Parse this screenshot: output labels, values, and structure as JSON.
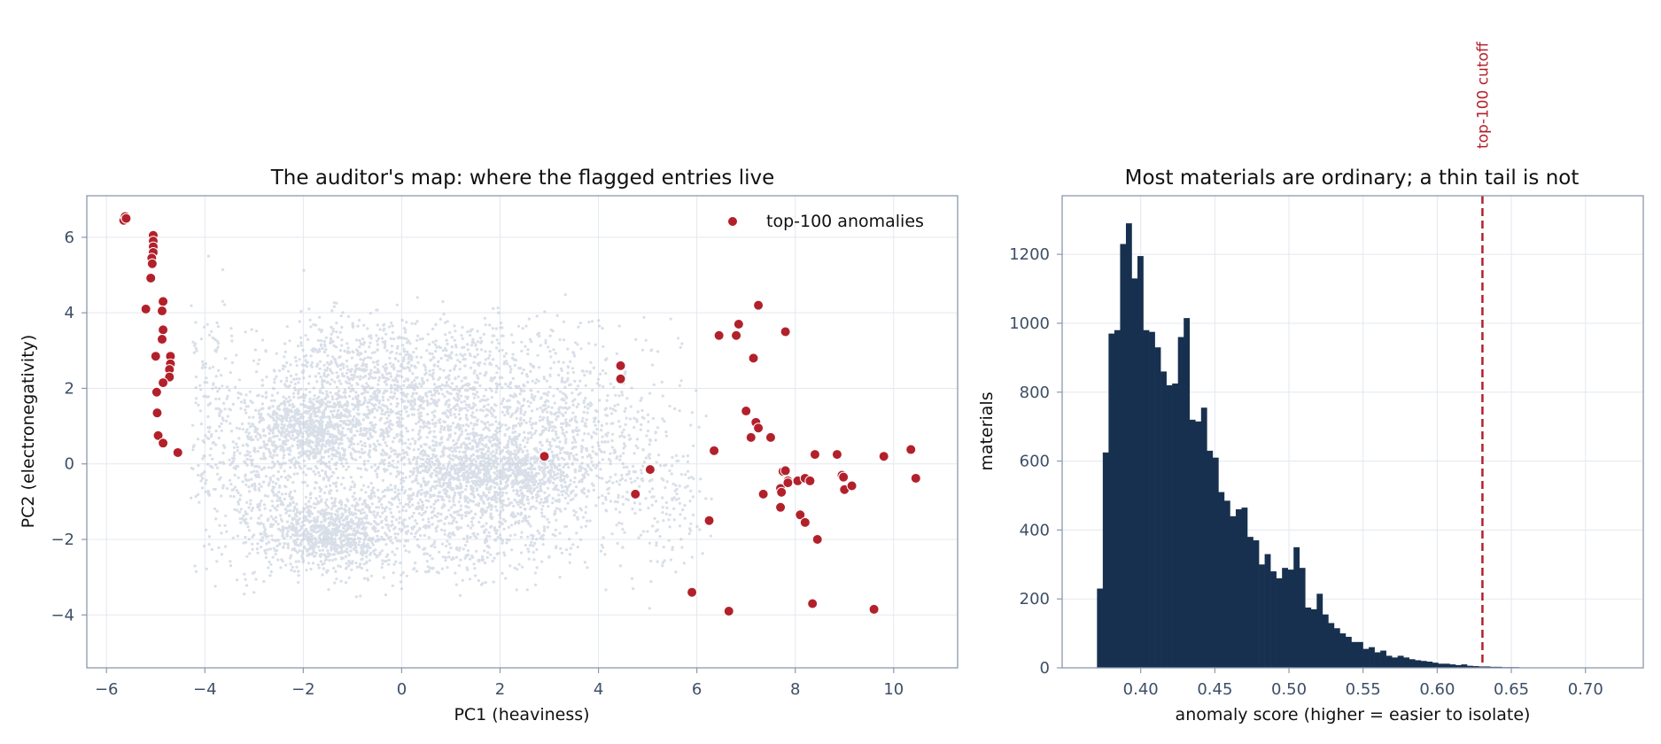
{
  "colors": {
    "background_points": "#b9c4d6",
    "anomaly": "#b2212b",
    "bars": "#17304f",
    "cutoff_line": "#b2212b",
    "axis": "#8a99ad",
    "grid": "#e3e8ee",
    "tick_text": "#3d4f66",
    "title_text": "#111111"
  },
  "chart_data": [
    {
      "type": "scatter",
      "title": "The auditor's map: where the flagged entries live",
      "xlabel": "PC1 (heaviness)",
      "ylabel": "PC2 (electronegativity)",
      "xlim": [
        -6.4,
        11.3
      ],
      "ylim": [
        -5.4,
        7.1
      ],
      "xticks": [
        -6,
        -4,
        -2,
        0,
        2,
        4,
        6,
        8,
        10
      ],
      "xtick_labels": [
        "−6",
        "−4",
        "−2",
        "0",
        "2",
        "4",
        "6",
        "8",
        "10"
      ],
      "yticks": [
        -4,
        -2,
        0,
        2,
        4,
        6
      ],
      "ytick_labels": [
        "−4",
        "−2",
        "0",
        "2",
        "4",
        "6"
      ],
      "grid": true,
      "legend": {
        "position": "top-right",
        "entries": [
          "top-100 anomalies"
        ]
      },
      "series": [
        {
          "name": "top-100 anomalies",
          "points": [
            [
              -5.65,
              6.45
            ],
            [
              -5.62,
              6.55
            ],
            [
              -5.6,
              6.5
            ],
            [
              -5.05,
              6.05
            ],
            [
              -5.05,
              5.9
            ],
            [
              -5.05,
              5.75
            ],
            [
              -5.05,
              5.6
            ],
            [
              -5.08,
              5.45
            ],
            [
              -5.07,
              5.3
            ],
            [
              -5.1,
              4.92
            ],
            [
              -5.2,
              4.1
            ],
            [
              -4.85,
              4.3
            ],
            [
              -4.87,
              4.05
            ],
            [
              -4.85,
              3.55
            ],
            [
              -4.87,
              3.3
            ],
            [
              -5.0,
              2.85
            ],
            [
              -4.7,
              2.85
            ],
            [
              -4.7,
              2.65
            ],
            [
              -4.72,
              2.5
            ],
            [
              -4.72,
              2.3
            ],
            [
              -4.85,
              2.15
            ],
            [
              -4.98,
              1.9
            ],
            [
              -4.97,
              1.35
            ],
            [
              -4.95,
              0.75
            ],
            [
              -4.85,
              0.55
            ],
            [
              -4.55,
              0.3
            ],
            [
              2.9,
              0.2
            ],
            [
              4.45,
              2.6
            ],
            [
              4.45,
              2.25
            ],
            [
              5.05,
              -0.15
            ],
            [
              4.75,
              -0.8
            ],
            [
              5.9,
              -3.4
            ],
            [
              6.25,
              -1.5
            ],
            [
              6.35,
              0.35
            ],
            [
              6.65,
              -3.9
            ],
            [
              6.45,
              3.4
            ],
            [
              6.8,
              3.4
            ],
            [
              6.85,
              3.7
            ],
            [
              7.25,
              4.2
            ],
            [
              7.15,
              2.8
            ],
            [
              7.8,
              3.5
            ],
            [
              7.0,
              1.4
            ],
            [
              7.1,
              0.7
            ],
            [
              7.2,
              1.1
            ],
            [
              7.25,
              0.95
            ],
            [
              7.5,
              0.7
            ],
            [
              7.35,
              -0.8
            ],
            [
              7.7,
              -0.65
            ],
            [
              7.72,
              -0.75
            ],
            [
              7.75,
              -0.2
            ],
            [
              7.8,
              -0.18
            ],
            [
              7.85,
              -0.45
            ],
            [
              7.85,
              -0.5
            ],
            [
              8.05,
              -0.45
            ],
            [
              8.2,
              -0.38
            ],
            [
              8.3,
              -0.45
            ],
            [
              7.7,
              -1.15
            ],
            [
              8.1,
              -1.35
            ],
            [
              8.2,
              -1.55
            ],
            [
              8.45,
              -2.0
            ],
            [
              8.35,
              -3.7
            ],
            [
              8.4,
              0.25
            ],
            [
              8.85,
              0.25
            ],
            [
              8.95,
              -0.3
            ],
            [
              8.98,
              -0.35
            ],
            [
              9.0,
              -0.68
            ],
            [
              9.15,
              -0.58
            ],
            [
              9.6,
              -3.85
            ],
            [
              9.8,
              0.2
            ],
            [
              10.35,
              0.38
            ],
            [
              10.45,
              -0.38
            ]
          ]
        }
      ]
    },
    {
      "type": "bar",
      "title": "Most materials are ordinary; a thin tail is not",
      "xlabel": "anomaly score (higher = easier to isolate)",
      "ylabel": "materials",
      "xlim": [
        0.347,
        0.739
      ],
      "ylim": [
        0,
        1370
      ],
      "xticks": [
        0.4,
        0.45,
        0.5,
        0.55,
        0.6,
        0.65,
        0.7
      ],
      "xtick_labels": [
        "0.40",
        "0.45",
        "0.50",
        "0.55",
        "0.60",
        "0.65",
        "0.70"
      ],
      "yticks": [
        0,
        200,
        400,
        600,
        800,
        1000,
        1200
      ],
      "ytick_labels": [
        "0",
        "200",
        "400",
        "600",
        "800",
        "1000",
        "1200"
      ],
      "grid": true,
      "bin_start": 0.3705,
      "bin_width": 0.0039,
      "values": [
        230,
        625,
        970,
        980,
        1230,
        1290,
        1130,
        1195,
        980,
        975,
        930,
        860,
        820,
        825,
        960,
        1015,
        720,
        715,
        755,
        630,
        610,
        510,
        485,
        440,
        460,
        465,
        380,
        370,
        300,
        330,
        280,
        260,
        290,
        285,
        350,
        290,
        175,
        170,
        215,
        155,
        130,
        115,
        100,
        90,
        75,
        75,
        55,
        60,
        45,
        50,
        35,
        30,
        35,
        30,
        25,
        22,
        20,
        18,
        15,
        12,
        12,
        10,
        8,
        10,
        6,
        5,
        4,
        4,
        3,
        3,
        2,
        2,
        2,
        1,
        1,
        1,
        1,
        1
      ],
      "cutoff": {
        "x": 0.6305,
        "label": "top-100 cutoff"
      }
    }
  ]
}
